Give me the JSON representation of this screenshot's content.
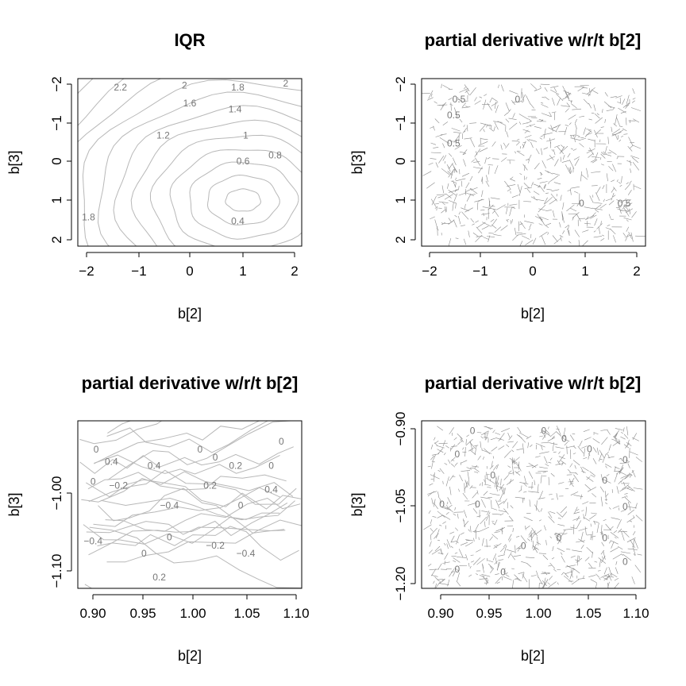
{
  "chart_data": [
    {
      "type": "contour",
      "title": "IQR",
      "xlabel": "b[2]",
      "ylabel": "b[3]",
      "xlim": [
        -2.1,
        2.1
      ],
      "ylim": [
        -2.1,
        2.1
      ],
      "x_ticks": [
        "−2",
        "−1",
        "0",
        "1",
        "2"
      ],
      "y_ticks": [
        "−2",
        "−1",
        "0",
        "1",
        "2"
      ],
      "contour_labels": [
        {
          "text": "2.2",
          "x": -1.3,
          "y": 1.8
        },
        {
          "text": "2",
          "x": -0.1,
          "y": 1.85
        },
        {
          "text": "1.8",
          "x": 0.9,
          "y": 1.8
        },
        {
          "text": "2",
          "x": 1.8,
          "y": 1.9
        },
        {
          "text": "1.6",
          "x": 0.0,
          "y": 1.4
        },
        {
          "text": "1.4",
          "x": 0.85,
          "y": 1.25
        },
        {
          "text": "1.2",
          "x": -0.5,
          "y": 0.6
        },
        {
          "text": "1",
          "x": 1.05,
          "y": 0.6
        },
        {
          "text": "0.8",
          "x": 1.6,
          "y": 0.1
        },
        {
          "text": "0.6",
          "x": 1.0,
          "y": -0.05
        },
        {
          "text": "0.4",
          "x": 0.9,
          "y": -1.55
        },
        {
          "text": "1.8",
          "x": -1.9,
          "y": -1.45
        }
      ],
      "minimum": {
        "x": 1.0,
        "y": -0.95
      }
    },
    {
      "type": "contour",
      "title": "partial derivative w/r/t b[2]",
      "xlabel": "b[2]",
      "ylabel": "b[3]",
      "xlim": [
        -2.1,
        2.1
      ],
      "ylim": [
        -2.1,
        2.1
      ],
      "x_ticks": [
        "−2",
        "−1",
        "0",
        "1",
        "2"
      ],
      "y_ticks": [
        "−2",
        "−1",
        "0",
        "1",
        "2"
      ],
      "contour_labels": [
        {
          "text": "0.5",
          "x": -1.4,
          "y": 1.5
        },
        {
          "text": "0.5",
          "x": -1.5,
          "y": 1.1
        },
        {
          "text": "0.5",
          "x": -1.5,
          "y": 0.4
        },
        {
          "text": "0",
          "x": -0.3,
          "y": 1.5
        },
        {
          "text": "0",
          "x": 0.9,
          "y": -1.1
        },
        {
          "text": "0.5",
          "x": 1.7,
          "y": -1.1
        }
      ]
    },
    {
      "type": "contour",
      "title": "partial derivative w/r/t b[2]",
      "xlabel": "b[2]",
      "ylabel": "b[3]",
      "xlim": [
        0.885,
        1.105
      ],
      "ylim": [
        -1.125,
        -0.915
      ],
      "x_ticks": [
        "0.90",
        "0.95",
        "1.00",
        "1.05",
        "1.10"
      ],
      "y_ticks": [
        "−1.00",
        "−1.10"
      ],
      "contour_labels": [
        {
          "text": "0",
          "x": 0.903,
          "y": -0.955
        },
        {
          "text": "0.4",
          "x": 0.918,
          "y": -0.97
        },
        {
          "text": "0.4",
          "x": 0.96,
          "y": -0.975
        },
        {
          "text": "0",
          "x": 1.005,
          "y": -0.955
        },
        {
          "text": "0",
          "x": 1.02,
          "y": -0.965
        },
        {
          "text": "0.2",
          "x": 1.04,
          "y": -0.975
        },
        {
          "text": "0",
          "x": 1.075,
          "y": -0.975
        },
        {
          "text": "0",
          "x": 1.085,
          "y": -0.945
        },
        {
          "text": "0",
          "x": 0.9,
          "y": -0.995
        },
        {
          "text": "−0.2",
          "x": 0.925,
          "y": -1.0
        },
        {
          "text": "0.2",
          "x": 1.015,
          "y": -1.0
        },
        {
          "text": "0.4",
          "x": 1.075,
          "y": -1.005
        },
        {
          "text": "−0.4",
          "x": 0.975,
          "y": -1.025
        },
        {
          "text": "0",
          "x": 1.045,
          "y": -1.025
        },
        {
          "text": "−0.4",
          "x": 0.9,
          "y": -1.07
        },
        {
          "text": "0",
          "x": 0.975,
          "y": -1.065
        },
        {
          "text": "−0.2",
          "x": 1.02,
          "y": -1.075
        },
        {
          "text": "0",
          "x": 0.95,
          "y": -1.085
        },
        {
          "text": "−0.4",
          "x": 1.05,
          "y": -1.085
        },
        {
          "text": "0.2",
          "x": 0.965,
          "y": -1.115
        }
      ]
    },
    {
      "type": "contour",
      "title": "partial derivative w/r/t b[2]",
      "xlabel": "b[2]",
      "ylabel": "b[3]",
      "xlim": [
        0.885,
        1.105
      ],
      "ylim": [
        -1.21,
        -0.89
      ],
      "x_ticks": [
        "0.90",
        "0.95",
        "1.00",
        "1.05",
        "1.10"
      ],
      "y_ticks": [
        "−0.90",
        "−1.05",
        "−1.20"
      ],
      "contour_labels": [
        {
          "text": "0",
          "x": 0.935,
          "y": -0.915
        },
        {
          "text": "0",
          "x": 1.005,
          "y": -0.915
        },
        {
          "text": "0",
          "x": 0.92,
          "y": -0.96
        },
        {
          "text": "0",
          "x": 1.025,
          "y": -0.93
        },
        {
          "text": "0",
          "x": 1.05,
          "y": -0.95
        },
        {
          "text": "0",
          "x": 1.085,
          "y": -0.97
        },
        {
          "text": "0",
          "x": 0.955,
          "y": -1.0
        },
        {
          "text": "0",
          "x": 1.065,
          "y": -1.01
        },
        {
          "text": "0",
          "x": 0.905,
          "y": -1.055
        },
        {
          "text": "0",
          "x": 0.94,
          "y": -1.055
        },
        {
          "text": "0",
          "x": 1.085,
          "y": -1.06
        },
        {
          "text": "0",
          "x": 0.985,
          "y": -1.135
        },
        {
          "text": "0",
          "x": 1.02,
          "y": -1.12
        },
        {
          "text": "0",
          "x": 1.065,
          "y": -1.12
        },
        {
          "text": "0",
          "x": 0.92,
          "y": -1.18
        },
        {
          "text": "0",
          "x": 0.965,
          "y": -1.185
        },
        {
          "text": "0",
          "x": 1.085,
          "y": -1.165
        }
      ]
    }
  ]
}
